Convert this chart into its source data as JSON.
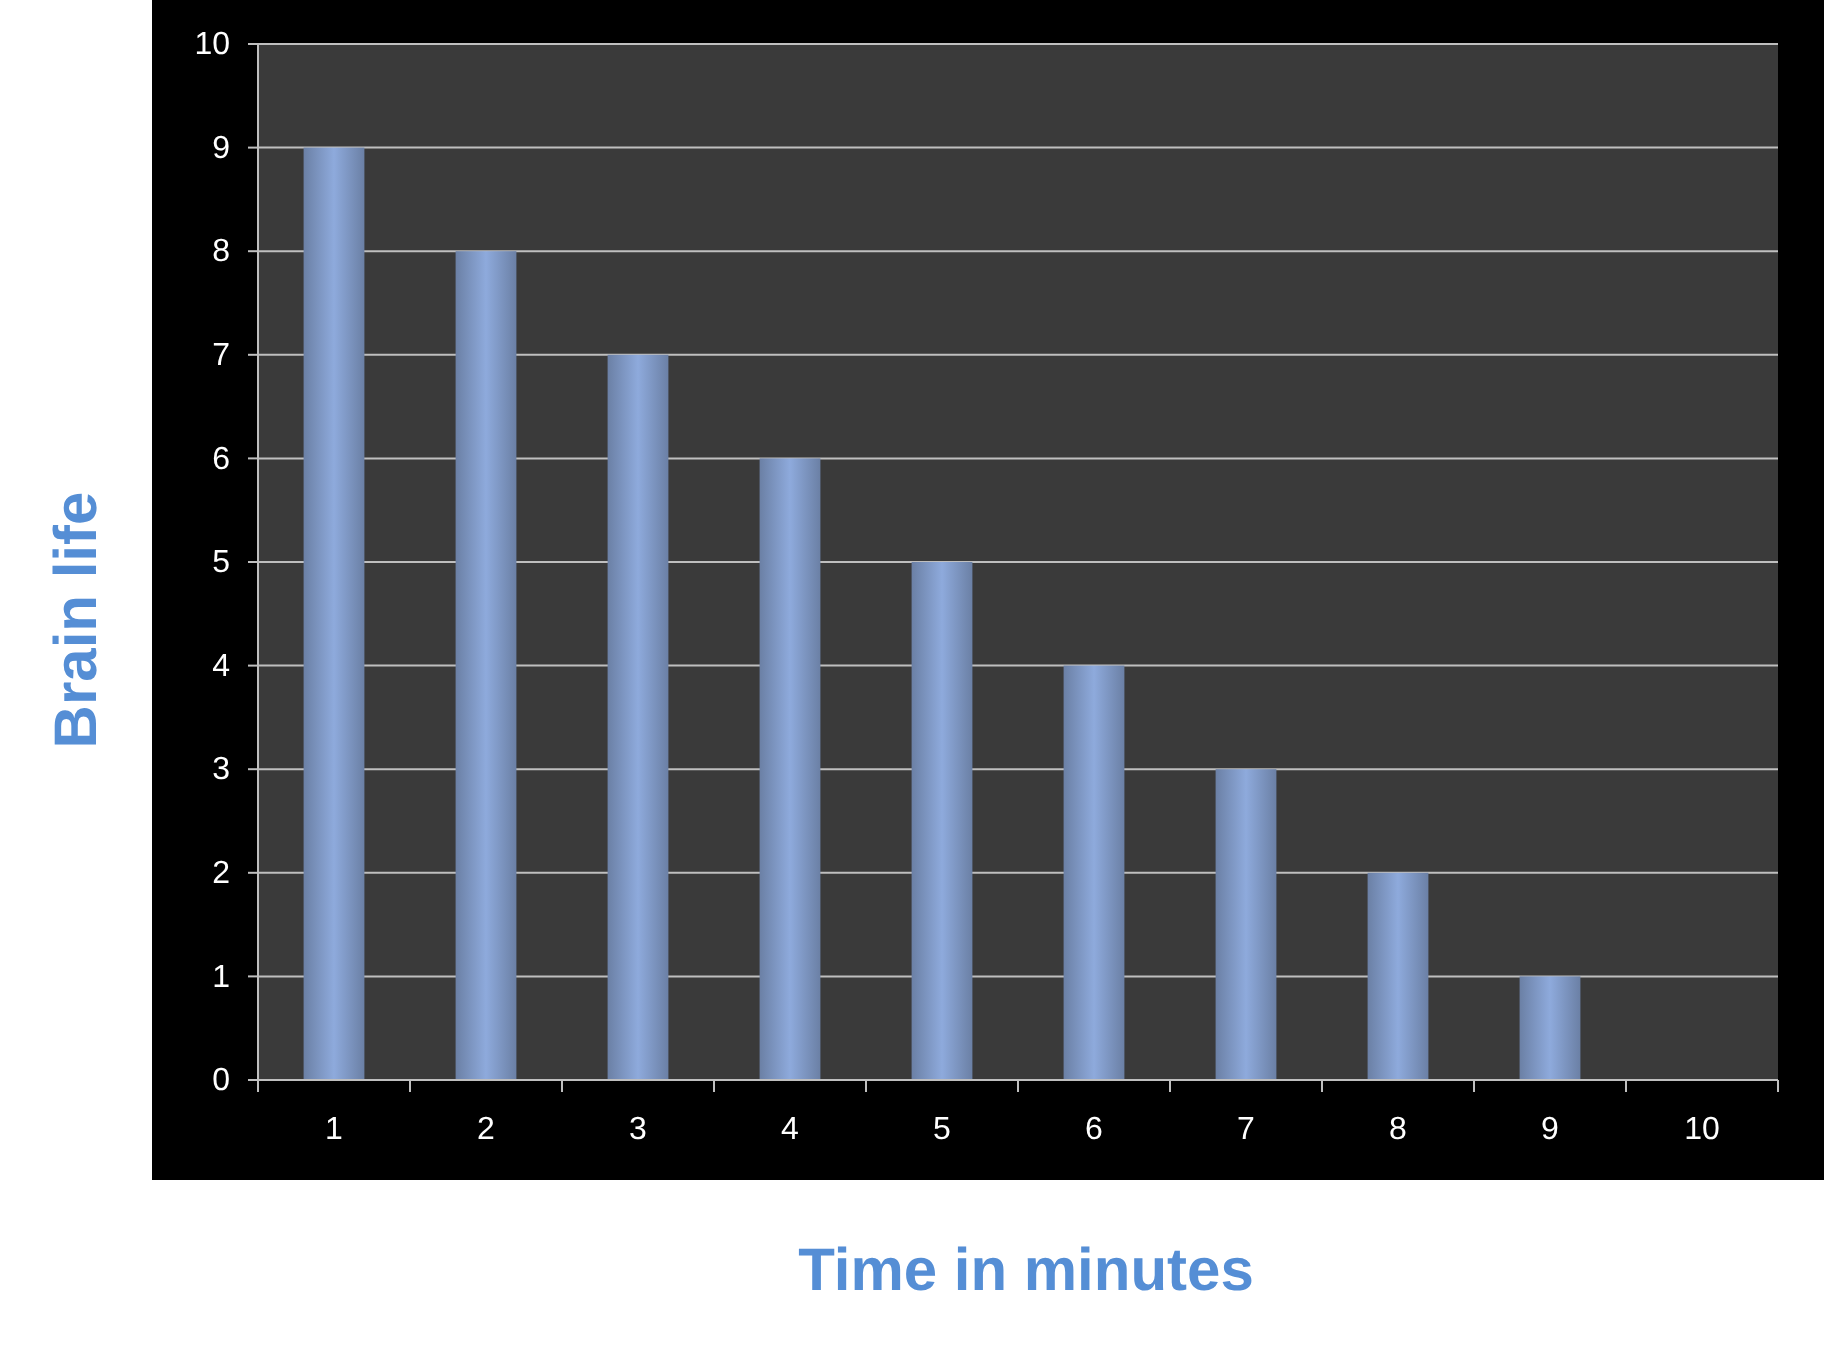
{
  "chart_data": {
    "type": "bar",
    "xlabel": "Time in minutes",
    "ylabel": "Brain life",
    "categories": [
      "1",
      "2",
      "3",
      "4",
      "5",
      "6",
      "7",
      "8",
      "9",
      "10"
    ],
    "values": [
      9,
      8,
      7,
      6,
      5,
      4,
      3,
      2,
      1,
      0
    ],
    "color": "#8eaadc",
    "ylim": [
      0,
      10
    ],
    "yticks": [
      0,
      1,
      2,
      3,
      4,
      5,
      6,
      7,
      8,
      9,
      10
    ],
    "grid": "y"
  }
}
